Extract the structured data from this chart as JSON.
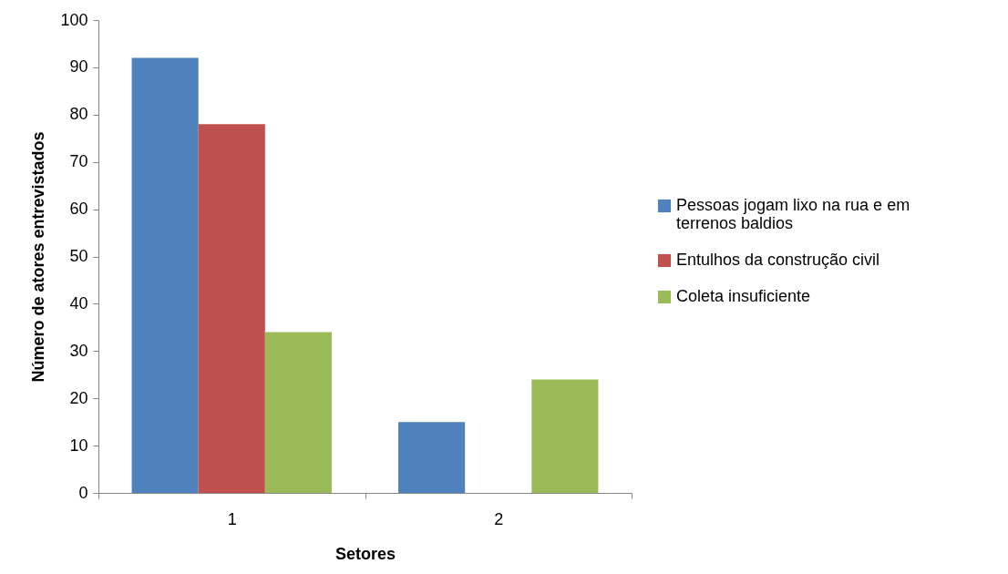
{
  "chart_data": {
    "type": "bar",
    "xlabel": "Setores",
    "ylabel": "Número de atores entrevistados",
    "categories": [
      "1",
      "2"
    ],
    "series": [
      {
        "name": "Pessoas jogam lixo na rua e em terrenos baldios",
        "color": "#4f81bd",
        "values": [
          92,
          15
        ]
      },
      {
        "name": "Entulhos da construção civil",
        "color": "#c0504d",
        "values": [
          78,
          0
        ]
      },
      {
        "name": "Coleta insuficiente",
        "color": "#9bbb59",
        "values": [
          34,
          24
        ]
      }
    ],
    "ylim": [
      0,
      100
    ],
    "yticks": [
      0,
      10,
      20,
      30,
      40,
      50,
      60,
      70,
      80,
      90,
      100
    ],
    "grid": false,
    "legend": "right"
  }
}
